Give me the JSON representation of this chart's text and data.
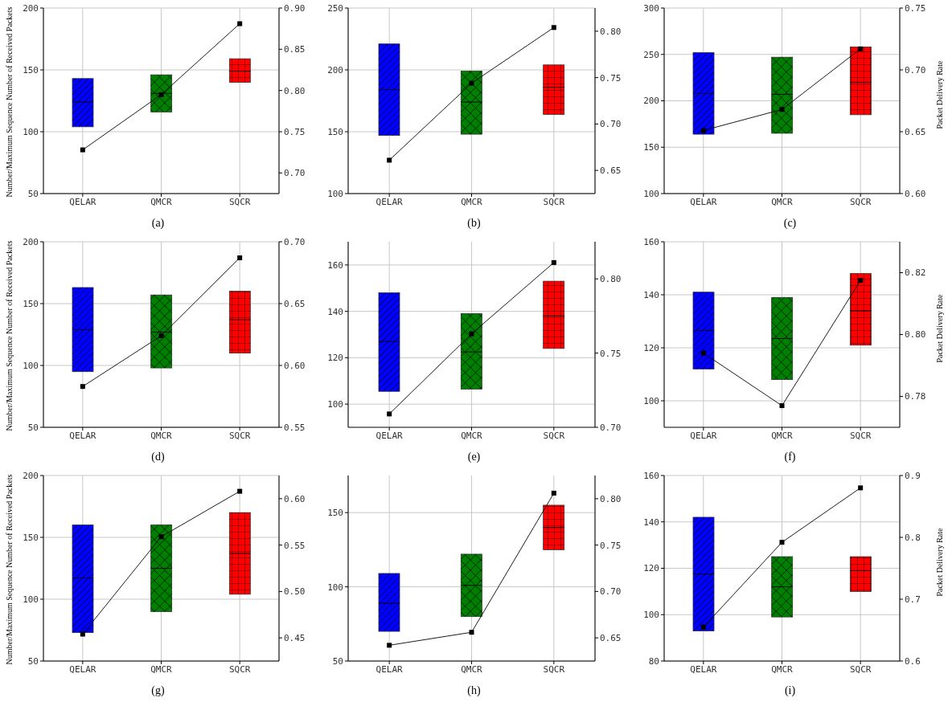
{
  "chart_data": [
    {
      "type": "box",
      "title": "(a)",
      "ylabel": "Number/Maximum Sequence Number of Received Packets",
      "categories": [
        "QELAR",
        "QMCR",
        "SQCR"
      ],
      "ylim": [
        50,
        200
      ],
      "yticks": [
        50,
        100,
        150,
        200
      ],
      "y2lim": [
        0.675,
        0.9
      ],
      "y2ticks": [
        {
          "value": 0.7,
          "label": "0.70"
        },
        {
          "value": 0.75,
          "label": "0.75"
        },
        {
          "value": 0.8,
          "label": "0.80"
        },
        {
          "value": 0.85,
          "label": "0.85"
        },
        {
          "value": 0.9,
          "label": "0.90"
        }
      ],
      "grid": true,
      "marker": "square",
      "series": [
        {
          "colors": [
            "#0000ff",
            "#008000",
            "#ff0000"
          ],
          "boxes": [
            {
              "low": 104,
              "q1": 104,
              "median": 124,
              "q3": 143,
              "high": 143
            },
            {
              "low": 116,
              "q1": 116,
              "median": 131,
              "q3": 146,
              "high": 146
            },
            {
              "low": 140,
              "q1": 140,
              "median": 149,
              "q3": 159,
              "high": 159
            }
          ]
        },
        {
          "type": "line",
          "axis": "y2",
          "color": "#000000",
          "values": [
            0.728,
            0.795,
            0.881
          ]
        }
      ]
    },
    {
      "type": "box",
      "title": "(b)",
      "categories": [
        "QELAR",
        "QMCR",
        "SQCR"
      ],
      "ylim": [
        100,
        250
      ],
      "yticks": [
        100,
        150,
        200,
        250
      ],
      "y2lim": [
        0.625,
        0.825
      ],
      "y2ticks": [
        {
          "value": 0.65,
          "label": "0.65"
        },
        {
          "value": 0.7,
          "label": "0.70"
        },
        {
          "value": 0.75,
          "label": "0.75"
        },
        {
          "value": 0.8,
          "label": "0.80"
        }
      ],
      "grid": true,
      "marker": "square",
      "series": [
        {
          "colors": [
            "#0000ff",
            "#008000",
            "#ff0000"
          ],
          "boxes": [
            {
              "low": 147,
              "q1": 147,
              "median": 184,
              "q3": 221,
              "high": 221
            },
            {
              "low": 148,
              "q1": 148,
              "median": 174,
              "q3": 199,
              "high": 199
            },
            {
              "low": 164,
              "q1": 164,
              "median": 186,
              "q3": 204,
              "high": 204
            }
          ]
        },
        {
          "type": "line",
          "axis": "y2",
          "color": "#000000",
          "values": [
            0.661,
            0.744,
            0.804
          ]
        }
      ]
    },
    {
      "type": "box",
      "title": "(c)",
      "y2label": "Packet Delivery Rate",
      "categories": [
        "QELAR",
        "QMCR",
        "SQCR"
      ],
      "ylim": [
        100,
        300
      ],
      "yticks": [
        100,
        150,
        200,
        250,
        300
      ],
      "y2lim": [
        0.6,
        0.75
      ],
      "y2ticks": [
        {
          "value": 0.6,
          "label": "0.60"
        },
        {
          "value": 0.65,
          "label": "0.65"
        },
        {
          "value": 0.7,
          "label": "0.70"
        },
        {
          "value": 0.75,
          "label": "0.75"
        }
      ],
      "grid": true,
      "marker": "square",
      "series": [
        {
          "colors": [
            "#0000ff",
            "#008000",
            "#ff0000"
          ],
          "boxes": [
            {
              "low": 164,
              "q1": 164,
              "median": 208,
              "q3": 252,
              "high": 252
            },
            {
              "low": 165,
              "q1": 165,
              "median": 207,
              "q3": 247,
              "high": 247
            },
            {
              "low": 185,
              "q1": 185,
              "median": 220,
              "q3": 258,
              "high": 258
            }
          ]
        },
        {
          "type": "line",
          "axis": "y2",
          "color": "#000000",
          "values": [
            0.651,
            0.668,
            0.717
          ]
        }
      ]
    },
    {
      "type": "box",
      "title": "(d)",
      "ylabel": "Number/Maximum Sequence Number of Received Packets",
      "categories": [
        "QELAR",
        "QMCR",
        "SQCR"
      ],
      "ylim": [
        50,
        200
      ],
      "yticks": [
        50,
        100,
        150,
        200
      ],
      "y2lim": [
        0.55,
        0.7
      ],
      "y2ticks": [
        {
          "value": 0.55,
          "label": "0.55"
        },
        {
          "value": 0.6,
          "label": "0.60"
        },
        {
          "value": 0.65,
          "label": "0.65"
        },
        {
          "value": 0.7,
          "label": "0.70"
        }
      ],
      "grid": true,
      "marker": "square",
      "series": [
        {
          "colors": [
            "#0000ff",
            "#008000",
            "#ff0000"
          ],
          "boxes": [
            {
              "low": 95,
              "q1": 95,
              "median": 129,
              "q3": 163,
              "high": 163
            },
            {
              "low": 98,
              "q1": 98,
              "median": 127,
              "q3": 157,
              "high": 157
            },
            {
              "low": 110,
              "q1": 110,
              "median": 137,
              "q3": 160,
              "high": 160
            }
          ]
        },
        {
          "type": "line",
          "axis": "y2",
          "color": "#000000",
          "values": [
            0.583,
            0.624,
            0.687
          ]
        }
      ]
    },
    {
      "type": "box",
      "title": "(e)",
      "categories": [
        "QELAR",
        "QMCR",
        "SQCR"
      ],
      "ylim": [
        90,
        170
      ],
      "yticks": [
        100,
        120,
        140,
        160
      ],
      "y2lim": [
        0.7,
        0.825
      ],
      "y2ticks": [
        {
          "value": 0.7,
          "label": "0.70"
        },
        {
          "value": 0.75,
          "label": "0.75"
        },
        {
          "value": 0.8,
          "label": "0.80"
        }
      ],
      "grid": true,
      "marker": "square",
      "series": [
        {
          "colors": [
            "#0000ff",
            "#008000",
            "#ff0000"
          ],
          "boxes": [
            {
              "low": 105.5,
              "q1": 105.5,
              "median": 127,
              "q3": 148,
              "high": 148
            },
            {
              "low": 106.5,
              "q1": 106.5,
              "median": 122.5,
              "q3": 139,
              "high": 139
            },
            {
              "low": 124,
              "q1": 124,
              "median": 138,
              "q3": 153,
              "high": 153
            }
          ]
        },
        {
          "type": "line",
          "axis": "y2",
          "color": "#000000",
          "values": [
            0.709,
            0.763,
            0.811
          ]
        }
      ]
    },
    {
      "type": "box",
      "title": "(f)",
      "y2label": "Packet Delivery Rate",
      "categories": [
        "QELAR",
        "QMCR",
        "SQCR"
      ],
      "ylim": [
        90,
        160
      ],
      "yticks": [
        100,
        120,
        140,
        160
      ],
      "y2lim": [
        0.77,
        0.83
      ],
      "y2ticks": [
        {
          "value": 0.78,
          "label": "0.78"
        },
        {
          "value": 0.8,
          "label": "0.80"
        },
        {
          "value": 0.82,
          "label": "0.82"
        }
      ],
      "grid": true,
      "marker": "square",
      "series": [
        {
          "colors": [
            "#0000ff",
            "#008000",
            "#ff0000"
          ],
          "boxes": [
            {
              "low": 112,
              "q1": 112,
              "median": 126.5,
              "q3": 141,
              "high": 141
            },
            {
              "low": 108,
              "q1": 108,
              "median": 123.5,
              "q3": 139,
              "high": 139
            },
            {
              "low": 121,
              "q1": 121,
              "median": 134,
              "q3": 148,
              "high": 148
            }
          ]
        },
        {
          "type": "line",
          "axis": "y2",
          "color": "#000000",
          "values": [
            0.794,
            0.777,
            0.8175
          ]
        }
      ]
    },
    {
      "type": "box",
      "title": "(g)",
      "ylabel": "Number/Maximum Sequence Number of Received Packets",
      "categories": [
        "QELAR",
        "QMCR",
        "SQCR"
      ],
      "ylim": [
        50,
        200
      ],
      "yticks": [
        50,
        100,
        150,
        200
      ],
      "y2lim": [
        0.425,
        0.625
      ],
      "y2ticks": [
        {
          "value": 0.45,
          "label": "0.45"
        },
        {
          "value": 0.5,
          "label": "0.50"
        },
        {
          "value": 0.55,
          "label": "0.55"
        },
        {
          "value": 0.6,
          "label": "0.60"
        }
      ],
      "grid": true,
      "marker": "square",
      "series": [
        {
          "colors": [
            "#0000ff",
            "#008000",
            "#ff0000"
          ],
          "boxes": [
            {
              "low": 73,
              "q1": 73,
              "median": 117,
              "q3": 160,
              "high": 160
            },
            {
              "low": 90,
              "q1": 90,
              "median": 125,
              "q3": 160,
              "high": 160
            },
            {
              "low": 104,
              "q1": 104,
              "median": 137,
              "q3": 170,
              "high": 170
            }
          ]
        },
        {
          "type": "line",
          "axis": "y2",
          "color": "#000000",
          "values": [
            0.454,
            0.559,
            0.608
          ]
        }
      ]
    },
    {
      "type": "box",
      "title": "(h)",
      "categories": [
        "QELAR",
        "QMCR",
        "SQCR"
      ],
      "ylim": [
        50,
        175
      ],
      "yticks": [
        50,
        100,
        150
      ],
      "y2lim": [
        0.625,
        0.825
      ],
      "y2ticks": [
        {
          "value": 0.65,
          "label": "0.65"
        },
        {
          "value": 0.7,
          "label": "0.70"
        },
        {
          "value": 0.75,
          "label": "0.75"
        },
        {
          "value": 0.8,
          "label": "0.80"
        }
      ],
      "grid": true,
      "marker": "square",
      "series": [
        {
          "colors": [
            "#0000ff",
            "#008000",
            "#ff0000"
          ],
          "boxes": [
            {
              "low": 70,
              "q1": 70,
              "median": 89,
              "q3": 109,
              "high": 109
            },
            {
              "low": 80,
              "q1": 80,
              "median": 101,
              "q3": 122,
              "high": 122
            },
            {
              "low": 125,
              "q1": 125,
              "median": 140,
              "q3": 155,
              "high": 155
            }
          ]
        },
        {
          "type": "line",
          "axis": "y2",
          "color": "#000000",
          "values": [
            0.642,
            0.656,
            0.806
          ]
        }
      ]
    },
    {
      "type": "box",
      "title": "(i)",
      "y2label": "Packet Delivery Rate",
      "categories": [
        "QELAR",
        "QMCR",
        "SQCR"
      ],
      "ylim": [
        80,
        160
      ],
      "yticks": [
        80,
        100,
        120,
        140,
        160
      ],
      "y2lim": [
        0.6,
        0.9
      ],
      "y2ticks": [
        0.6,
        0.7,
        0.8,
        0.9
      ],
      "grid": true,
      "marker": "square",
      "series": [
        {
          "colors": [
            "#0000ff",
            "#008000",
            "#ff0000"
          ],
          "boxes": [
            {
              "low": 93,
              "q1": 93,
              "median": 117.5,
              "q3": 142,
              "high": 142
            },
            {
              "low": 99,
              "q1": 99,
              "median": 112,
              "q3": 125,
              "high": 125
            },
            {
              "low": 110,
              "q1": 110,
              "median": 119,
              "q3": 125,
              "high": 125
            }
          ]
        },
        {
          "type": "line",
          "axis": "y2",
          "color": "#000000",
          "values": [
            0.655,
            0.792,
            0.88
          ]
        }
      ]
    }
  ]
}
